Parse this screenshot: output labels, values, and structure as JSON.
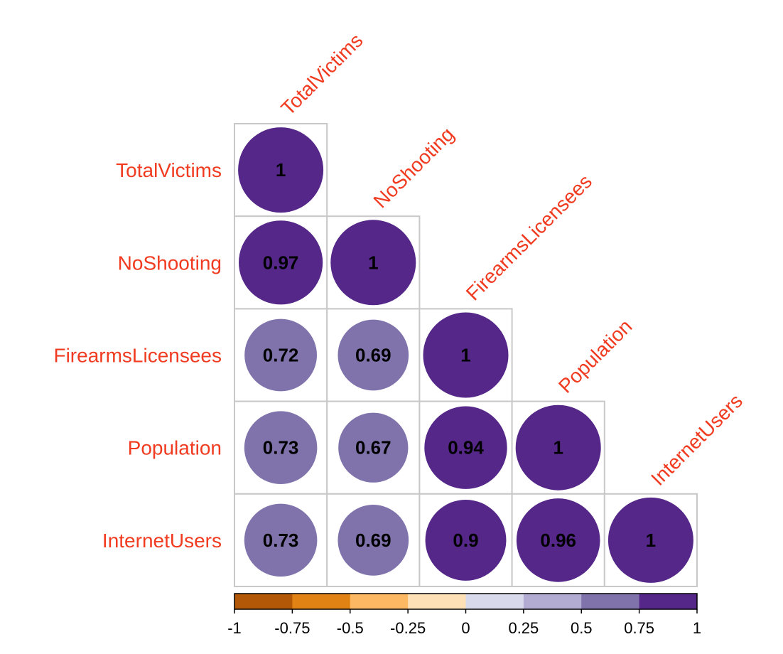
{
  "chart_data": {
    "type": "heatmap",
    "style": "correlation-matrix-circles-lower-triangle",
    "variables": [
      "TotalVictims",
      "NoShooting",
      "FirearmsLicensees",
      "Population",
      "InternetUsers"
    ],
    "matrix": [
      [
        1,
        null,
        null,
        null,
        null
      ],
      [
        0.97,
        1,
        null,
        null,
        null
      ],
      [
        0.72,
        0.69,
        1,
        null,
        null
      ],
      [
        0.73,
        0.67,
        0.94,
        1,
        null
      ],
      [
        0.73,
        0.69,
        0.9,
        0.96,
        1
      ]
    ],
    "value_labels": [
      [
        "1",
        "",
        "",
        "",
        ""
      ],
      [
        "0.97",
        "1",
        "",
        "",
        ""
      ],
      [
        "0.72",
        "0.69",
        "1",
        "",
        ""
      ],
      [
        "0.73",
        "0.67",
        "0.94",
        "1",
        ""
      ],
      [
        "0.73",
        "0.69",
        "0.9",
        "0.96",
        "1"
      ]
    ],
    "colorbar": {
      "range": [
        -1,
        1
      ],
      "ticks": [
        "-1",
        "-0.75",
        "-0.5",
        "-0.25",
        "0",
        "0.25",
        "0.5",
        "0.75",
        "1"
      ],
      "colors": [
        "#b35806",
        "#e08214",
        "#fdb863",
        "#fee0b6",
        "#d8daeb",
        "#b2abd2",
        "#8073ac",
        "#542788"
      ]
    },
    "label_color": "#f03b20",
    "grid": true
  }
}
